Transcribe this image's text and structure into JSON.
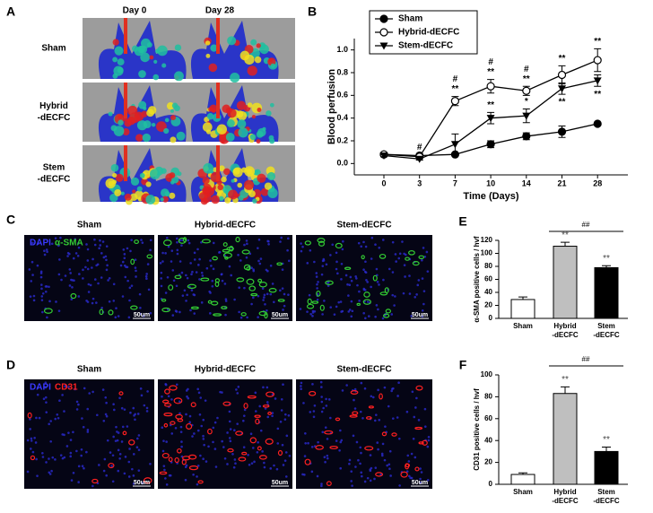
{
  "panel_letters": [
    "A",
    "B",
    "C",
    "D",
    "E",
    "F"
  ],
  "panel_a": {
    "columns": [
      "Day 0",
      "Day 28"
    ],
    "rows": [
      [
        "Sham"
      ],
      [
        "Hybrid",
        "-dECFC"
      ],
      [
        "Stem",
        "-dECFC"
      ]
    ]
  },
  "panel_c": {
    "columns": [
      "Sham",
      "Hybrid-dECFC",
      "Stem-dECFC"
    ],
    "stain": [
      "DAPI",
      "α-SMA"
    ],
    "stain_colors": [
      "#3a3aff",
      "#33cc33"
    ],
    "scale": "50um"
  },
  "panel_d": {
    "columns": [
      "Sham",
      "Hybrid-dECFC",
      "Stem-dECFC"
    ],
    "stain": [
      "DAPI",
      "CD31"
    ],
    "stain_colors": [
      "#3a3aff",
      "#ff2020"
    ],
    "scale": "50um"
  },
  "chart_data": [
    {
      "type": "line",
      "x_label": "Time (Days)",
      "y_label": "Blood perfusion",
      "categories": [
        "0",
        "3",
        "7",
        "10",
        "14",
        "21",
        "28"
      ],
      "ylim": [
        -0.1,
        1.1
      ],
      "yticks": [
        {
          "value": 0,
          "label": "0.0"
        },
        0.2,
        0.4,
        0.6,
        0.8,
        {
          "value": 1,
          "label": "1.0"
        }
      ],
      "legend": "top-left",
      "series": [
        {
          "name": "Sham",
          "color": "#000000",
          "marker": "circle",
          "values": [
            0.08,
            0.07,
            0.08,
            0.17,
            0.24,
            0.28,
            0.35
          ],
          "errors": [
            0.01,
            0.01,
            0.01,
            0.03,
            0.03,
            0.05,
            0.01
          ]
        },
        {
          "name": "Hybrid-dECFC",
          "color": "#000000",
          "marker": "open-circle",
          "values": [
            0.08,
            0.06,
            0.55,
            0.68,
            0.64,
            0.78,
            0.91
          ],
          "errors": [
            0.01,
            0.01,
            0.04,
            0.06,
            0.04,
            0.08,
            0.1
          ],
          "sig_above": [
            null,
            null,
            "**",
            "**",
            "**",
            "**",
            "**"
          ],
          "sig_hash": [
            null,
            "#",
            "#",
            "#",
            "#",
            null,
            null
          ]
        },
        {
          "name": "Stem-dECFC",
          "color": "#000000",
          "marker": "triangle-down",
          "values": [
            0.07,
            0.04,
            0.17,
            0.4,
            0.42,
            0.66,
            0.73
          ],
          "errors": [
            0.01,
            0.01,
            0.09,
            0.05,
            0.06,
            0.05,
            0.05
          ],
          "sig_above": [
            null,
            null,
            null,
            "**",
            "*",
            null,
            null
          ],
          "sig_below": [
            null,
            null,
            null,
            null,
            null,
            "**",
            "**"
          ]
        }
      ]
    },
    {
      "type": "bar",
      "y_label": "α-SMA positive cells / hvf",
      "categories": [
        [
          "Sham"
        ],
        [
          "Hybrid",
          "-dECFC"
        ],
        [
          "Stem",
          "-dECFC"
        ]
      ],
      "values": [
        29,
        111,
        78
      ],
      "errors": [
        4,
        6,
        3
      ],
      "colors": [
        "#ffffff",
        "#bfbfbf",
        "#000000"
      ],
      "sig": [
        null,
        "**",
        "**"
      ],
      "bracket_label": "##",
      "ylim": [
        0,
        120
      ],
      "yticks": [
        0,
        20,
        40,
        60,
        80,
        100,
        120
      ]
    },
    {
      "type": "bar",
      "y_label": "CD31 positive cells / hvf",
      "categories": [
        [
          "Sham"
        ],
        [
          "Hybrid",
          "-dECFC"
        ],
        [
          "Stem",
          "-dECFC"
        ]
      ],
      "values": [
        9,
        83,
        30
      ],
      "errors": [
        1.5,
        6,
        4
      ],
      "colors": [
        "#ffffff",
        "#bfbfbf",
        "#000000"
      ],
      "sig": [
        null,
        "**",
        "**"
      ],
      "bracket_label": "##",
      "ylim": [
        0,
        100
      ],
      "yticks": [
        0,
        20,
        40,
        60,
        80,
        100
      ]
    }
  ]
}
